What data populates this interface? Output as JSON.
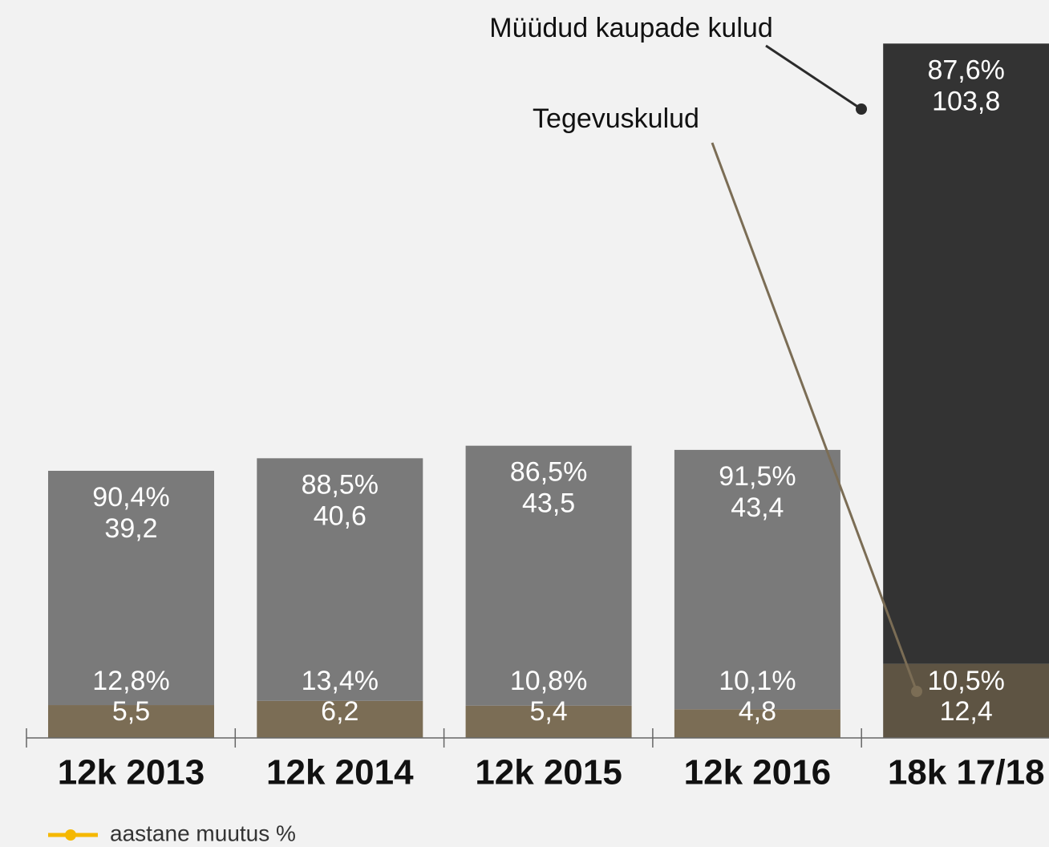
{
  "chart_data": {
    "type": "stacked_bar",
    "categories": [
      "12k 2013",
      "12k 2014",
      "12k 2015",
      "12k 2016",
      "18k 17/18"
    ],
    "series": [
      {
        "name": "Tegevuskulud",
        "colors": [
          "#7b6d55",
          "#7b6d55",
          "#7b6d55",
          "#7b6d55",
          "#5e5443"
        ],
        "values": [
          5.5,
          6.2,
          5.4,
          4.8,
          12.4
        ],
        "value_labels": [
          "5,5",
          "6,2",
          "5,4",
          "4,8",
          "12,4"
        ],
        "share_labels": [
          "12,8%",
          "13,4%",
          "10,8%",
          "10,1%",
          "10,5%"
        ]
      },
      {
        "name": "Müüdud kaupade kulud",
        "colors": [
          "#7a7a7a",
          "#7a7a7a",
          "#7a7a7a",
          "#7a7a7a",
          "#333333"
        ],
        "values": [
          39.2,
          40.6,
          43.5,
          43.4,
          103.8
        ],
        "value_labels": [
          "39,2",
          "40,6",
          "43,5",
          "43,4",
          "103,8"
        ],
        "share_labels": [
          "90,4%",
          "88,5%",
          "86,5%",
          "91,5%",
          "87,6%"
        ]
      }
    ],
    "ylim": [
      0,
      120
    ],
    "line_legend": {
      "name": "aastane muutus %",
      "color": "#f5b800"
    }
  }
}
